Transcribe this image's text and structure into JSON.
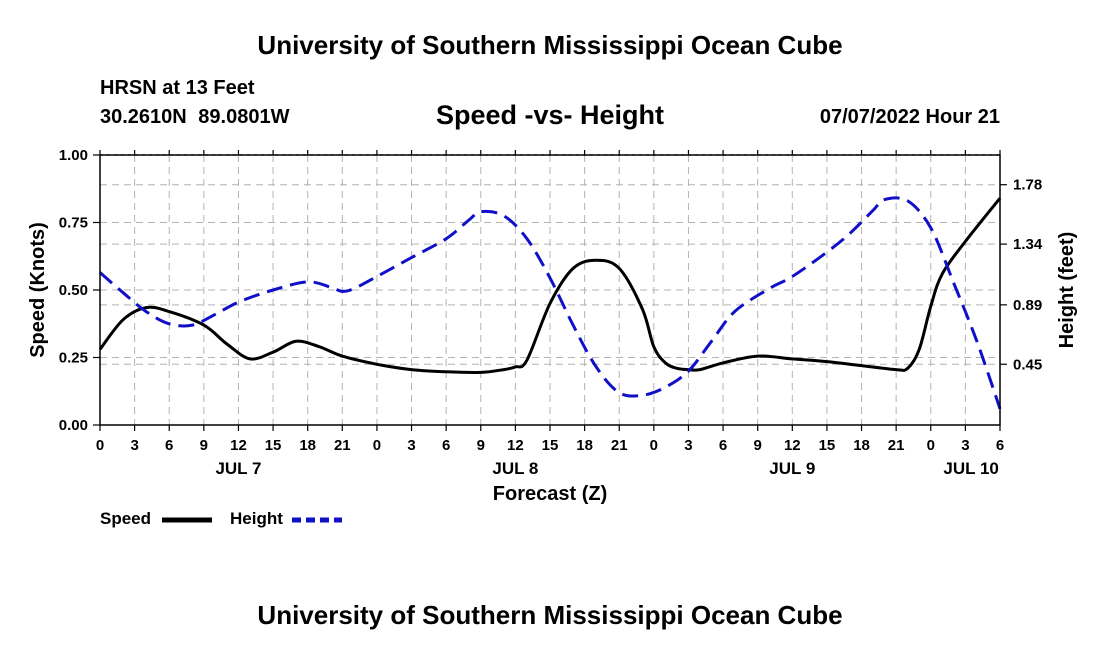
{
  "header": {
    "title": "University of Southern Mississippi Ocean Cube",
    "station": "HRSN at 13 Feet",
    "coordinates": "30.2610N  89.0801W",
    "chart_title": "Speed -vs- Height",
    "date": "07/07/2022 Hour 21"
  },
  "footer": {
    "title": "University of Southern Mississippi Ocean Cube"
  },
  "legend": {
    "speed_label": "Speed",
    "height_label": "Height"
  },
  "colors": {
    "speed": "#000000",
    "height": "#1010c8",
    "grid": "#b4b4b4"
  },
  "chart_data": {
    "type": "line",
    "title": "Speed -vs- Height",
    "xlabel": "Forecast (Z)",
    "ylabel_left": "Speed (Knots)",
    "ylabel_right": "Height (feet)",
    "x_unit": "hours from JUL 7 00Z",
    "xlim": [
      0,
      78
    ],
    "ylim_left": [
      0,
      1.0
    ],
    "yticks_left": [
      0.0,
      0.25,
      0.5,
      0.75,
      1.0
    ],
    "ytick_labels_left": [
      "0.00",
      "0.25",
      "0.50",
      "0.75",
      "1.00"
    ],
    "ylim_right": [
      0.0,
      2.0
    ],
    "yticks_right": [
      0.45,
      0.89,
      1.34,
      1.78
    ],
    "ytick_labels_right": [
      "0.45",
      "0.89",
      "1.34",
      "1.78"
    ],
    "xticks": [
      0,
      3,
      6,
      9,
      12,
      15,
      18,
      21,
      24,
      27,
      30,
      33,
      36,
      39,
      42,
      45,
      48,
      51,
      54,
      57,
      60,
      63,
      66,
      69,
      72,
      75,
      78
    ],
    "xtick_labels": [
      "0",
      "3",
      "6",
      "9",
      "12",
      "15",
      "18",
      "21",
      "0",
      "3",
      "6",
      "9",
      "12",
      "15",
      "18",
      "21",
      "0",
      "3",
      "6",
      "9",
      "12",
      "15",
      "18",
      "21",
      "0",
      "3",
      "6"
    ],
    "day_labels": [
      {
        "label": "JUL 7",
        "x": 12
      },
      {
        "label": "JUL 8",
        "x": 36
      },
      {
        "label": "JUL 9",
        "x": 60
      },
      {
        "label": "JUL 10",
        "x": 75.5
      }
    ],
    "grid": true,
    "series": [
      {
        "name": "Speed",
        "axis": "left",
        "style": "solid",
        "x": [
          0,
          2,
          4,
          6,
          9,
          11,
          13,
          15,
          17,
          19,
          21,
          24,
          27,
          30,
          33,
          35,
          36,
          37,
          39,
          41,
          43,
          45,
          47,
          48,
          49,
          50,
          51,
          52,
          54,
          57,
          60,
          63,
          66,
          69,
          70,
          71,
          72,
          73,
          75,
          78
        ],
        "y": [
          0.28,
          0.39,
          0.435,
          0.42,
          0.37,
          0.3,
          0.245,
          0.27,
          0.31,
          0.29,
          0.255,
          0.225,
          0.205,
          0.197,
          0.195,
          0.205,
          0.215,
          0.24,
          0.45,
          0.58,
          0.61,
          0.58,
          0.43,
          0.29,
          0.23,
          0.21,
          0.205,
          0.205,
          0.23,
          0.255,
          0.245,
          0.235,
          0.22,
          0.205,
          0.21,
          0.28,
          0.44,
          0.56,
          0.68,
          0.84
        ]
      },
      {
        "name": "Height",
        "axis": "right",
        "style": "dashed",
        "x": [
          0,
          2,
          4,
          6,
          8,
          10,
          12,
          15,
          18,
          20,
          21,
          22,
          24,
          27,
          30,
          32,
          33,
          35,
          37,
          39,
          41,
          43,
          45,
          47,
          49,
          51,
          53,
          55,
          58,
          60,
          63,
          65,
          67,
          68,
          70,
          72,
          74,
          76,
          78
        ],
        "y": [
          1.13,
          0.98,
          0.84,
          0.75,
          0.74,
          0.82,
          0.91,
          1.0,
          1.06,
          1.02,
          0.99,
          1.01,
          1.1,
          1.24,
          1.38,
          1.52,
          1.58,
          1.55,
          1.38,
          1.09,
          0.74,
          0.43,
          0.24,
          0.22,
          0.28,
          0.4,
          0.62,
          0.84,
          1.01,
          1.1,
          1.28,
          1.42,
          1.59,
          1.67,
          1.66,
          1.46,
          1.05,
          0.62,
          0.12
        ]
      }
    ]
  }
}
